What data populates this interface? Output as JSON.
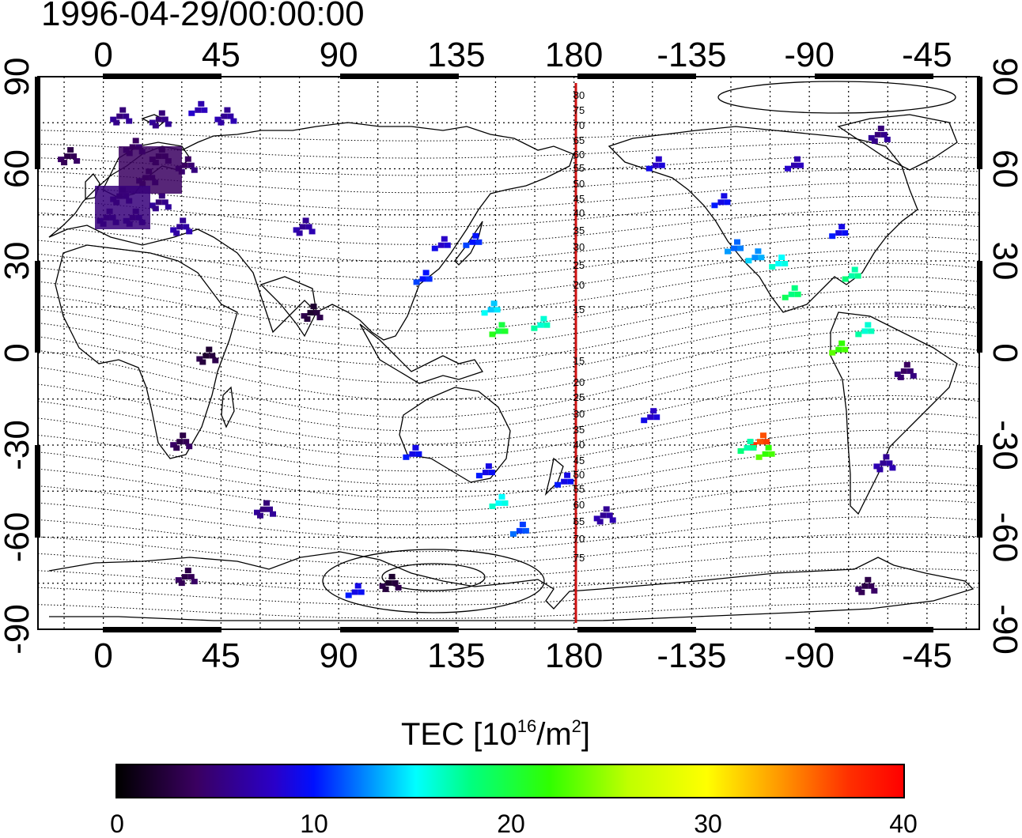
{
  "title": "1996-04-29/00:00:00",
  "axes": {
    "lon_ticks": [
      "0",
      "45",
      "90",
      "135",
      "180",
      "-135",
      "-90",
      "-45"
    ],
    "lat_ticks": [
      "90",
      "60",
      "30",
      "0",
      "-30",
      "-60",
      "-90"
    ]
  },
  "meridian_labels": [
    "80",
    "75",
    "70",
    "65",
    "60",
    "55",
    "50",
    "45",
    "40",
    "35",
    "30",
    "25",
    "20",
    "15",
    "15",
    "20",
    "25",
    "30",
    "35",
    "40",
    "45",
    "50",
    "55",
    "60",
    "65",
    "70",
    "75"
  ],
  "colorbar": {
    "title_main": "TEC  [10",
    "title_exp1": "16",
    "title_mid": "/m",
    "title_exp2": "2",
    "title_end": "]",
    "ticks": [
      "0",
      "10",
      "20",
      "30",
      "40"
    ]
  },
  "colors": {
    "meridian": "#cc1010",
    "low": "#2a0050",
    "high": "#ff2000"
  },
  "chart_data": {
    "type": "heatmap",
    "title": "1996-04-29/00:00:00",
    "xlabel": "",
    "ylabel": "",
    "xlim": [
      -25,
      335
    ],
    "ylim": [
      -90,
      90
    ],
    "legend_title": "TEC  [10^16/m^2]",
    "color_range": [
      0,
      40
    ],
    "cells": [
      {
        "lon": 5,
        "lat": 78,
        "tec": 5
      },
      {
        "lon": 20,
        "lat": 77,
        "tec": 5
      },
      {
        "lon": 35,
        "lat": 80,
        "tec": 7
      },
      {
        "lon": 45,
        "lat": 78,
        "tec": 6
      },
      {
        "lon": 10,
        "lat": 68,
        "tec": 4
      },
      {
        "lon": 20,
        "lat": 65,
        "tec": 3
      },
      {
        "lon": 30,
        "lat": 62,
        "tec": 4
      },
      {
        "lon": 15,
        "lat": 58,
        "tec": 4
      },
      {
        "lon": 5,
        "lat": 52,
        "tec": 4
      },
      {
        "lon": 20,
        "lat": 50,
        "tec": 5
      },
      {
        "lon": 10,
        "lat": 45,
        "tec": 5
      },
      {
        "lon": 28,
        "lat": 42,
        "tec": 6
      },
      {
        "lon": 0,
        "lat": 45,
        "tec": 5
      },
      {
        "lon": -15,
        "lat": 65,
        "tec": 3
      },
      {
        "lon": 75,
        "lat": 42,
        "tec": 6
      },
      {
        "lon": 78,
        "lat": 14,
        "tec": 2
      },
      {
        "lon": 38,
        "lat": 0,
        "tec": 2
      },
      {
        "lon": 28,
        "lat": -28,
        "tec": 3
      },
      {
        "lon": 60,
        "lat": -50,
        "tec": 5
      },
      {
        "lon": 30,
        "lat": -72,
        "tec": 3
      },
      {
        "lon": 95,
        "lat": -77,
        "tec": 9
      },
      {
        "lon": 108,
        "lat": -74,
        "tec": 2
      },
      {
        "lon": 128,
        "lat": 36,
        "tec": 8
      },
      {
        "lon": 140,
        "lat": 37,
        "tec": 10
      },
      {
        "lon": 121,
        "lat": 25,
        "tec": 10
      },
      {
        "lon": 147,
        "lat": 15,
        "tec": 14
      },
      {
        "lon": 150,
        "lat": 8,
        "tec": 20
      },
      {
        "lon": 166,
        "lat": 10,
        "tec": 16
      },
      {
        "lon": 117,
        "lat": -32,
        "tec": 9
      },
      {
        "lon": 145,
        "lat": -38,
        "tec": 9
      },
      {
        "lon": 150,
        "lat": -48,
        "tec": 15
      },
      {
        "lon": 158,
        "lat": -57,
        "tec": 11
      },
      {
        "lon": 175,
        "lat": -41,
        "tec": 9
      },
      {
        "lon": 190,
        "lat": -52,
        "tec": 6
      },
      {
        "lon": 208,
        "lat": -20,
        "tec": 8
      },
      {
        "lon": 210,
        "lat": 62,
        "tec": 8
      },
      {
        "lon": 235,
        "lat": 50,
        "tec": 9
      },
      {
        "lon": 240,
        "lat": 35,
        "tec": 12
      },
      {
        "lon": 248,
        "lat": 32,
        "tec": 13
      },
      {
        "lon": 257,
        "lat": 30,
        "tec": 15
      },
      {
        "lon": 262,
        "lat": 20,
        "tec": 18
      },
      {
        "lon": 280,
        "lat": 40,
        "tec": 9
      },
      {
        "lon": 285,
        "lat": 26,
        "tec": 17
      },
      {
        "lon": 263,
        "lat": 62,
        "tec": 7
      },
      {
        "lon": 295,
        "lat": 72,
        "tec": 5
      },
      {
        "lon": 280,
        "lat": 2,
        "tec": 22
      },
      {
        "lon": 290,
        "lat": 8,
        "tec": 16
      },
      {
        "lon": 250,
        "lat": -28,
        "tec": 36
      },
      {
        "lon": 252,
        "lat": -32,
        "tec": 22
      },
      {
        "lon": 245,
        "lat": -30,
        "tec": 17
      },
      {
        "lon": 297,
        "lat": -35,
        "tec": 6
      },
      {
        "lon": 290,
        "lat": -75,
        "tec": 3
      },
      {
        "lon": 305,
        "lat": -5,
        "tec": 4
      }
    ]
  }
}
